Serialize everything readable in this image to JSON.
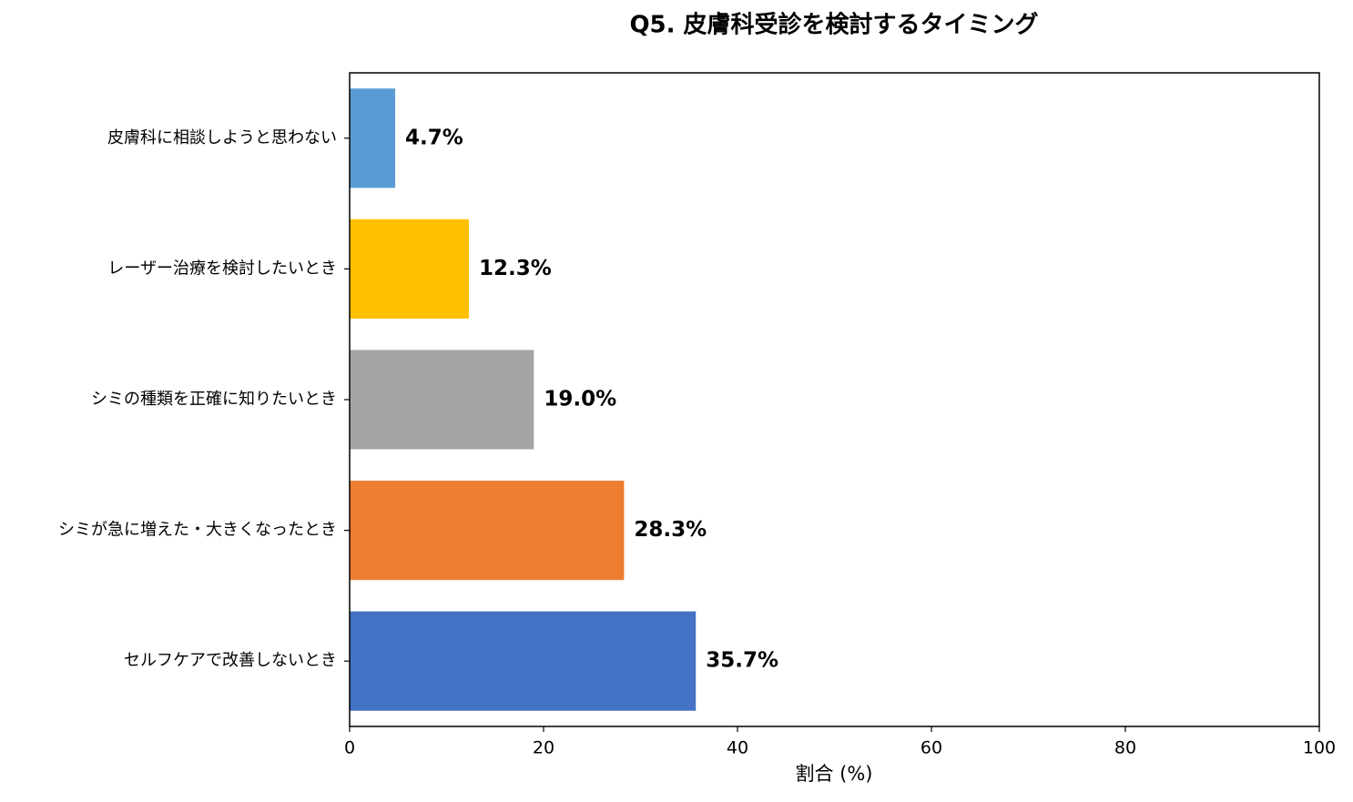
{
  "chart_data": {
    "type": "barh",
    "title": "Q5. 皮膚科受診を検討するタイミング",
    "x_label": "割合 (%)",
    "categories": [
      "皮膚科に相談しようと思わない",
      "レーザー治療を検討したいとき",
      "シミの種類を正確に知りたいとき",
      "シミが急に増えた・大きくなったとき",
      "セルフケアで改善しないとき"
    ],
    "values": [
      4.7,
      12.3,
      19.0,
      28.3,
      35.7
    ],
    "value_labels": [
      "4.7%",
      "12.3%",
      "19.0%",
      "28.3%",
      "35.7%"
    ],
    "colors": [
      "#5b9bd5",
      "#ffc000",
      "#a5a5a5",
      "#ed7d31",
      "#4472c4"
    ],
    "xlim": [
      0,
      100
    ],
    "xticks": [
      0,
      20,
      40,
      60,
      80,
      100
    ],
    "grid": false
  }
}
